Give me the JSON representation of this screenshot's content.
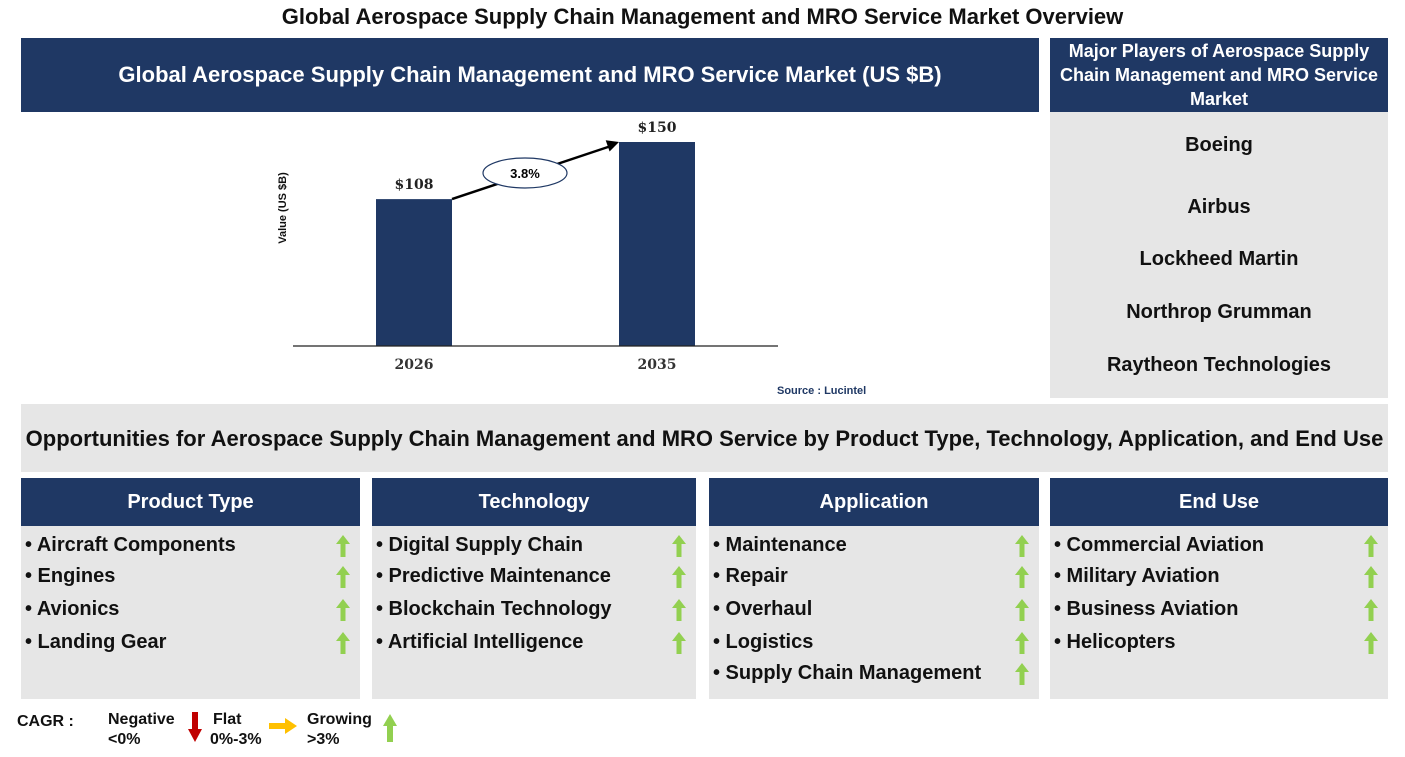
{
  "page": {
    "title": "Global Aerospace Supply Chain Management and MRO Service Market Overview"
  },
  "chart_panel": {
    "header": "Global Aerospace Supply Chain Management and MRO Service Market (US $B)",
    "source": "Source : Lucintel"
  },
  "chart_data": {
    "type": "bar",
    "title": "Global Aerospace Supply Chain Management and MRO Service Market (US $B)",
    "categories": [
      "2026",
      "2035"
    ],
    "values": [
      108,
      150
    ],
    "value_labels": [
      "$108",
      "$150"
    ],
    "ylabel": "Value (US $B)",
    "xlabel": "",
    "ylim": [
      0,
      150
    ],
    "grid": false,
    "cagr_label": "3.8%",
    "bar_color": "#1f3864"
  },
  "players": {
    "header": "Major Players of Aerospace Supply Chain Management and MRO Service Market",
    "items": [
      "Boeing",
      "Airbus",
      "Lockheed Martin",
      "Northrop Grumman",
      "Raytheon Technologies"
    ]
  },
  "opportunities": {
    "banner": "Opportunities for Aerospace Supply Chain Management and MRO Service by Product Type, Technology, Application, and End Use",
    "segments": [
      {
        "title": "Product Type",
        "items": [
          {
            "label": "• Aircraft Components",
            "trend": "growing"
          },
          {
            "label": "• Engines",
            "trend": "growing"
          },
          {
            "label": "• Avionics",
            "trend": "growing"
          },
          {
            "label": "• Landing Gear",
            "trend": "growing"
          }
        ]
      },
      {
        "title": "Technology",
        "items": [
          {
            "label": "• Digital Supply Chain",
            "trend": "growing"
          },
          {
            "label": "• Predictive Maintenance",
            "trend": "growing"
          },
          {
            "label": "• Blockchain Technology",
            "trend": "growing"
          },
          {
            "label": "• Artificial Intelligence",
            "trend": "growing"
          }
        ]
      },
      {
        "title": "Application",
        "items": [
          {
            "label": "• Maintenance",
            "trend": "growing"
          },
          {
            "label": "• Repair",
            "trend": "growing"
          },
          {
            "label": "• Overhaul",
            "trend": "growing"
          },
          {
            "label": "• Logistics",
            "trend": "growing"
          },
          {
            "label": "• Supply Chain Management",
            "trend": "growing"
          }
        ]
      },
      {
        "title": "End Use",
        "items": [
          {
            "label": "• Commercial Aviation",
            "trend": "growing"
          },
          {
            "label": "• Military Aviation",
            "trend": "growing"
          },
          {
            "label": "• Business Aviation",
            "trend": "growing"
          },
          {
            "label": "• Helicopters",
            "trend": "growing"
          }
        ]
      }
    ]
  },
  "legend": {
    "cagr_label": "CAGR  :",
    "negative_label": "Negative",
    "negative_range": "<0%",
    "flat_label": "Flat",
    "flat_range": "0%-3%",
    "growing_label": "Growing",
    "growing_range": ">3%",
    "colors": {
      "negative": "#c00000",
      "flat": "#ffc000",
      "growing": "#92d050"
    },
    "icons": {
      "negative": "down-arrow-icon",
      "flat": "right-arrow-icon",
      "growing": "up-arrow-icon"
    }
  }
}
